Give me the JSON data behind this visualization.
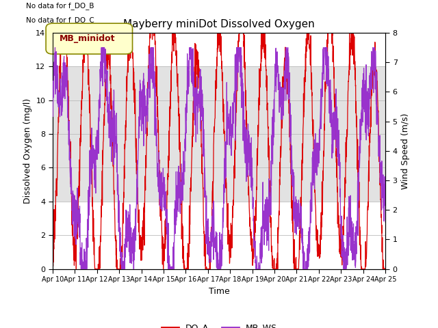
{
  "title": "Mayberry miniDot Dissolved Oxygen",
  "ylabel_left": "Dissolved Oxygen (mg/l)",
  "ylabel_right": "Wind Speed (m/s)",
  "xlabel": "Time",
  "ylim_left": [
    0,
    14
  ],
  "ylim_right": [
    0.0,
    8.0
  ],
  "yticks_left": [
    0,
    2,
    4,
    6,
    8,
    10,
    12,
    14
  ],
  "yticks_right": [
    0.0,
    1.0,
    2.0,
    3.0,
    4.0,
    5.0,
    6.0,
    7.0,
    8.0
  ],
  "shade_band": [
    4,
    12
  ],
  "shade_color": "#d0d0d0",
  "do_color": "#dd0000",
  "ws_color": "#9933cc",
  "do_label": "DO_A",
  "ws_label": "MB_WS",
  "legend_box_label": "MB_minidot",
  "no_data_text": [
    "No data for f_DO_B",
    "No data for f_DO_C"
  ],
  "xticklabels": [
    "Apr 10",
    "Apr 11",
    "Apr 12",
    "Apr 13",
    "Apr 14",
    "Apr 15",
    "Apr 16",
    "Apr 17",
    "Apr 18",
    "Apr 19",
    "Apr 20",
    "Apr 21",
    "Apr 22",
    "Apr 23",
    "Apr 24",
    "Apr 25"
  ],
  "bg_color": "#ffffff",
  "grid_color": "#bbbbbb",
  "seed": 12
}
